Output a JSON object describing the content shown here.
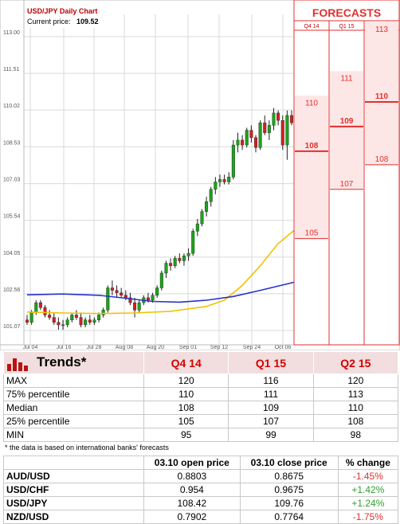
{
  "chart": {
    "title": "USD/JPY Daily Chart",
    "price_label": "Current price:",
    "price_value": "109.52",
    "forecasts_title": "FORECASTS"
  },
  "chart_data": {
    "type": "candlestick",
    "title": "USD/JPY Daily Chart",
    "ylim": [
      100.8,
      113.6
    ],
    "y_ticks": [
      "113.00",
      "111.51",
      "110.02",
      "108.53",
      "107.03",
      "105.54",
      "104.05",
      "102.56",
      "101.07"
    ],
    "y_tick_values": [
      113.0,
      111.51,
      110.02,
      108.53,
      107.03,
      105.54,
      104.05,
      102.56,
      101.07
    ],
    "x_ticks": [
      "Jul 04",
      "Jul 16",
      "Jul 28",
      "Aug 08",
      "Aug 20",
      "Sep 01",
      "Sep 12",
      "Sep 24",
      "Oct 06"
    ],
    "candles": [
      [
        101.5,
        101.7,
        101.3,
        101.4
      ],
      [
        101.4,
        101.9,
        101.3,
        101.8
      ],
      [
        101.8,
        102.3,
        101.7,
        102.2
      ],
      [
        102.2,
        102.3,
        101.9,
        102.0
      ],
      [
        102.0,
        102.1,
        101.6,
        101.7
      ],
      [
        101.7,
        101.9,
        101.5,
        101.6
      ],
      [
        101.6,
        101.8,
        101.3,
        101.4
      ],
      [
        101.4,
        101.6,
        101.1,
        101.3
      ],
      [
        101.3,
        101.5,
        101.1,
        101.3
      ],
      [
        101.3,
        101.6,
        101.2,
        101.5
      ],
      [
        101.5,
        101.8,
        101.4,
        101.7
      ],
      [
        101.7,
        101.9,
        101.5,
        101.6
      ],
      [
        101.6,
        101.8,
        101.2,
        101.3
      ],
      [
        101.3,
        101.6,
        101.2,
        101.5
      ],
      [
        101.5,
        101.7,
        101.3,
        101.4
      ],
      [
        101.4,
        101.6,
        101.3,
        101.5
      ],
      [
        101.5,
        101.8,
        101.4,
        101.7
      ],
      [
        101.7,
        102.0,
        101.6,
        101.9
      ],
      [
        101.9,
        102.9,
        101.8,
        102.8
      ],
      [
        102.8,
        103.1,
        102.5,
        102.7
      ],
      [
        102.7,
        102.9,
        102.4,
        102.6
      ],
      [
        102.6,
        102.8,
        102.4,
        102.5
      ],
      [
        102.5,
        102.7,
        102.3,
        102.4
      ],
      [
        102.4,
        102.6,
        102.1,
        102.2
      ],
      [
        102.2,
        102.4,
        101.6,
        101.9
      ],
      [
        101.9,
        102.3,
        101.8,
        102.2
      ],
      [
        102.2,
        102.5,
        102.1,
        102.4
      ],
      [
        102.4,
        102.6,
        102.2,
        102.3
      ],
      [
        102.3,
        102.6,
        102.2,
        102.5
      ],
      [
        102.5,
        102.9,
        102.4,
        102.8
      ],
      [
        102.8,
        103.5,
        102.7,
        103.4
      ],
      [
        103.4,
        103.9,
        103.2,
        103.8
      ],
      [
        103.8,
        104.0,
        103.5,
        103.7
      ],
      [
        103.7,
        104.1,
        103.6,
        104.0
      ],
      [
        104.0,
        104.2,
        103.8,
        103.9
      ],
      [
        103.9,
        104.2,
        103.7,
        104.1
      ],
      [
        104.1,
        104.4,
        103.9,
        104.2
      ],
      [
        104.2,
        105.2,
        104.1,
        105.1
      ],
      [
        105.1,
        105.6,
        104.9,
        105.4
      ],
      [
        105.4,
        106.0,
        105.3,
        105.9
      ],
      [
        105.9,
        106.5,
        105.7,
        106.3
      ],
      [
        106.3,
        106.9,
        106.1,
        106.8
      ],
      [
        106.8,
        107.3,
        106.6,
        107.1
      ],
      [
        107.1,
        107.4,
        106.9,
        107.2
      ],
      [
        107.2,
        107.4,
        107.0,
        107.1
      ],
      [
        107.1,
        107.5,
        107.0,
        107.3
      ],
      [
        107.3,
        108.8,
        107.2,
        108.6
      ],
      [
        108.6,
        109.1,
        108.3,
        108.8
      ],
      [
        108.8,
        109.0,
        108.4,
        108.6
      ],
      [
        108.6,
        109.3,
        108.5,
        109.2
      ],
      [
        109.2,
        109.4,
        108.7,
        108.9
      ],
      [
        108.9,
        109.0,
        108.3,
        108.5
      ],
      [
        108.5,
        109.6,
        108.4,
        109.5
      ],
      [
        109.5,
        109.8,
        109.0,
        109.1
      ],
      [
        109.1,
        109.6,
        108.8,
        109.4
      ],
      [
        109.4,
        110.1,
        109.2,
        109.9
      ],
      [
        109.9,
        110.0,
        109.4,
        109.6
      ],
      [
        109.6,
        109.8,
        108.4,
        108.6
      ],
      [
        108.6,
        110.0,
        108.0,
        109.8
      ],
      [
        109.8,
        110.0,
        109.4,
        109.5
      ]
    ],
    "ma_yellow": [
      [
        0,
        101.82
      ],
      [
        8,
        101.78
      ],
      [
        16,
        101.76
      ],
      [
        24,
        101.78
      ],
      [
        32,
        101.85
      ],
      [
        40,
        102.05
      ],
      [
        44,
        102.3
      ],
      [
        48,
        102.9
      ],
      [
        52,
        103.7
      ],
      [
        56,
        104.6
      ],
      [
        60,
        105.2
      ],
      [
        63,
        105.62
      ]
    ],
    "ma_blue": [
      [
        0,
        102.52
      ],
      [
        8,
        102.55
      ],
      [
        16,
        102.5
      ],
      [
        22,
        102.38
      ],
      [
        28,
        102.25
      ],
      [
        34,
        102.22
      ],
      [
        40,
        102.3
      ],
      [
        46,
        102.45
      ],
      [
        52,
        102.7
      ],
      [
        58,
        102.96
      ],
      [
        63,
        103.18
      ]
    ],
    "forecast_columns": [
      {
        "label": "Q4 14",
        "max": 110,
        "median": 108,
        "min": 105
      },
      {
        "label": "Q1 15",
        "max": 111,
        "median": 109,
        "min": 107
      },
      {
        "label": "Q2 15",
        "max": 113,
        "median": 110,
        "min": 108
      }
    ]
  },
  "trends": {
    "title": "Trends*",
    "columns": [
      "Q4 14",
      "Q1 15",
      "Q2 15"
    ],
    "rows": [
      {
        "label": "MAX",
        "values": [
          "120",
          "116",
          "120"
        ]
      },
      {
        "label": "75% percentile",
        "values": [
          "110",
          "111",
          "113"
        ]
      },
      {
        "label": "Median",
        "values": [
          "108",
          "109",
          "110"
        ]
      },
      {
        "label": "25% percentile",
        "values": [
          "105",
          "107",
          "108"
        ]
      },
      {
        "label": "MIN",
        "values": [
          "95",
          "99",
          "98"
        ]
      }
    ],
    "footnote": "* the data is based on international banks' forecasts"
  },
  "fx": {
    "columns": [
      "",
      "03.10 open price",
      "03.10 close price",
      "% change"
    ],
    "rows": [
      {
        "pair": "AUD/USD",
        "open": "0.8803",
        "close": "0.8675",
        "change": "-1.45%",
        "dir": "neg"
      },
      {
        "pair": "USD/CHF",
        "open": "0.954",
        "close": "0.9675",
        "change": "+1.42%",
        "dir": "pos"
      },
      {
        "pair": "USD/JPY",
        "open": "108.42",
        "close": "109.76",
        "change": "+1.24%",
        "dir": "pos"
      },
      {
        "pair": "NZD/USD",
        "open": "0.7902",
        "close": "0.7764",
        "change": "-1.75%",
        "dir": "neg"
      }
    ]
  },
  "colors": {
    "bull": "#1aa31a",
    "bear": "#d42020",
    "ma_yellow": "#f2c200",
    "ma_blue": "#2633c9",
    "forecast_red": "#e0302f",
    "forecast_fill": "#fde6e6"
  }
}
